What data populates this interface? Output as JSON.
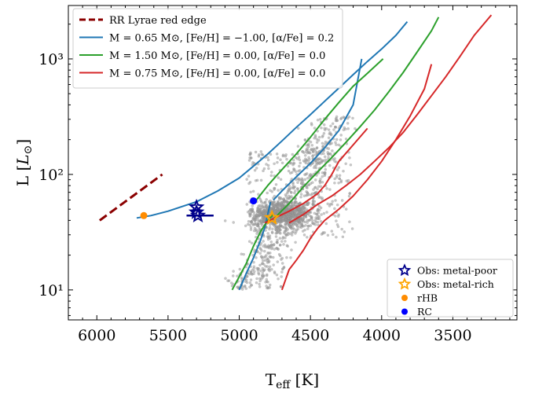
{
  "chart_data": {
    "type": "scatter",
    "xlabel": "T_eff [K]",
    "ylabel": "L [L_⊙]",
    "x_scale": "linear",
    "x_reversed": true,
    "xlim": [
      6200,
      3050
    ],
    "y_scale": "log",
    "ylim": [
      5.5,
      2900
    ],
    "x_ticks": [
      6000,
      5500,
      5000,
      4500,
      4000,
      3500
    ],
    "x_tick_labels": [
      "6000",
      "5500",
      "5000",
      "4500",
      "4000",
      "3500"
    ],
    "y_ticks": [
      10,
      100,
      1000
    ],
    "y_tick_labels": [
      "10¹",
      "10²",
      "10³"
    ],
    "legend_placement": "top-left",
    "legend2_placement": "bottom-right",
    "colors": {
      "rr_lyrae": "#8b0000",
      "track_065": "#1f77b4",
      "track_150": "#2ca02c",
      "track_075": "#d62728",
      "metal_poor_marker": "#00008b",
      "metal_rich_marker": "#ffa500",
      "rhb": "#ff8c00",
      "rc": "#0000ff",
      "field_stars": "#9a9a9a"
    },
    "series": [
      {
        "name": "RR Lyrae red edge",
        "style": "dashed",
        "x": [
          5980,
          5540
        ],
        "y": [
          40,
          100
        ]
      },
      {
        "name": "M = 0.65 M⊙, [Fe/H] = −1.00, [α/Fe] = 0.2",
        "style": "solid",
        "segments": [
          {
            "x": [
              5720,
              5620,
              5500,
              5300,
              5150,
              5000,
              4900,
              4800,
              4700,
              4600,
              4500,
              4400,
              4300,
              4200,
              4100,
              4000,
              3900,
              3820
            ],
            "y": [
              42,
              44,
              48,
              58,
              72,
              93,
              118,
              150,
              195,
              255,
              330,
              430,
              560,
              730,
              950,
              1220,
              1600,
              2100
            ]
          },
          {
            "x": [
              5000,
              4950,
              4900,
              4850,
              4820,
              4800,
              4780
            ],
            "y": [
              10,
              14,
              19,
              27,
              35,
              45,
              58
            ]
          },
          {
            "x": [
              4760,
              4700,
              4600,
              4500,
              4400,
              4300,
              4200,
              4140
            ],
            "y": [
              60,
              72,
              95,
              125,
              170,
              240,
              400,
              1000
            ]
          }
        ]
      },
      {
        "name": "M = 1.50 M⊙, [Fe/H] = 0.00, [α/Fe] = 0.0",
        "style": "solid",
        "segments": [
          {
            "x": [
              5050,
              5000,
              4950,
              4900,
              4850,
              4800,
              4760
            ],
            "y": [
              10,
              13,
              17,
              24,
              32,
              40,
              45
            ]
          },
          {
            "x": [
              4880,
              4800,
              4700,
              4600,
              4500,
              4400,
              4300,
              4200,
              4100,
              3990
            ],
            "y": [
              60,
              80,
              110,
              150,
              210,
              300,
              420,
              580,
              750,
              1000
            ]
          },
          {
            "x": [
              4760,
              4650,
              4550,
              4450,
              4350,
              4250,
              4150,
              4050,
              3950,
              3850,
              3750,
              3650,
              3600
            ],
            "y": [
              41,
              56,
              78,
              105,
              140,
              190,
              260,
              360,
              520,
              760,
              1150,
              1750,
              2300
            ]
          }
        ]
      },
      {
        "name": "M = 0.75 M⊙, [Fe/H] = 0.00, [α/Fe] = 0.0",
        "style": "solid",
        "segments": [
          {
            "x": [
              4820,
              4750,
              4650,
              4550,
              4450,
              4400,
              4350,
              4300,
              4200,
              4100
            ],
            "y": [
              38,
              42,
              48,
              56,
              68,
              80,
              100,
              130,
              180,
              250
            ]
          },
          {
            "x": [
              4700,
              4650,
              4600,
              4550,
              4500,
              4450,
              4400,
              4300,
              4200,
              4100,
              4000,
              3900,
              3800,
              3700,
              3650
            ],
            "y": [
              10,
              15,
              18,
              22,
              28,
              34,
              40,
              50,
              65,
              90,
              130,
              200,
              320,
              550,
              900
            ]
          },
          {
            "x": [
              4650,
              4550,
              4450,
              4350,
              4250,
              4150,
              4050,
              3950,
              3850,
              3750,
              3650,
              3550,
              3450,
              3350,
              3230
            ],
            "y": [
              38,
              45,
              55,
              65,
              80,
              100,
              130,
              170,
              230,
              330,
              480,
              700,
              1050,
              1600,
              2400
            ]
          }
        ]
      }
    ],
    "markers": [
      {
        "name": "Obs: metal-poor",
        "shape": "star-open",
        "points": [
          {
            "x": 5300,
            "y": 52
          },
          {
            "x": 5290,
            "y": 44
          },
          {
            "x": 5300,
            "y": 47
          }
        ],
        "x_err": [
          5370,
          5180
        ]
      },
      {
        "name": "Obs: metal-rich",
        "shape": "star-open",
        "points": [
          {
            "x": 4770,
            "y": 42
          }
        ]
      },
      {
        "name": "rHB",
        "shape": "circle",
        "points": [
          {
            "x": 5670,
            "y": 44
          }
        ]
      },
      {
        "name": "RC",
        "shape": "circle",
        "points": [
          {
            "x": 4900,
            "y": 59
          }
        ]
      }
    ],
    "scatter_field": {
      "note_visible": false,
      "x_range": [
        5150,
        4050
      ],
      "y_range": [
        10,
        420
      ]
    },
    "legend": [
      "RR Lyrae red edge",
      "M = 0.65 M⊙, [Fe/H] = −1.00, [α/Fe] = 0.2",
      "M = 1.50 M⊙, [Fe/H] = 0.00, [α/Fe] = 0.0",
      "M = 0.75 M⊙, [Fe/H] = 0.00, [α/Fe] = 0.0"
    ],
    "legend2": [
      "Obs: metal-poor",
      "Obs: metal-rich",
      "rHB",
      "RC"
    ]
  }
}
